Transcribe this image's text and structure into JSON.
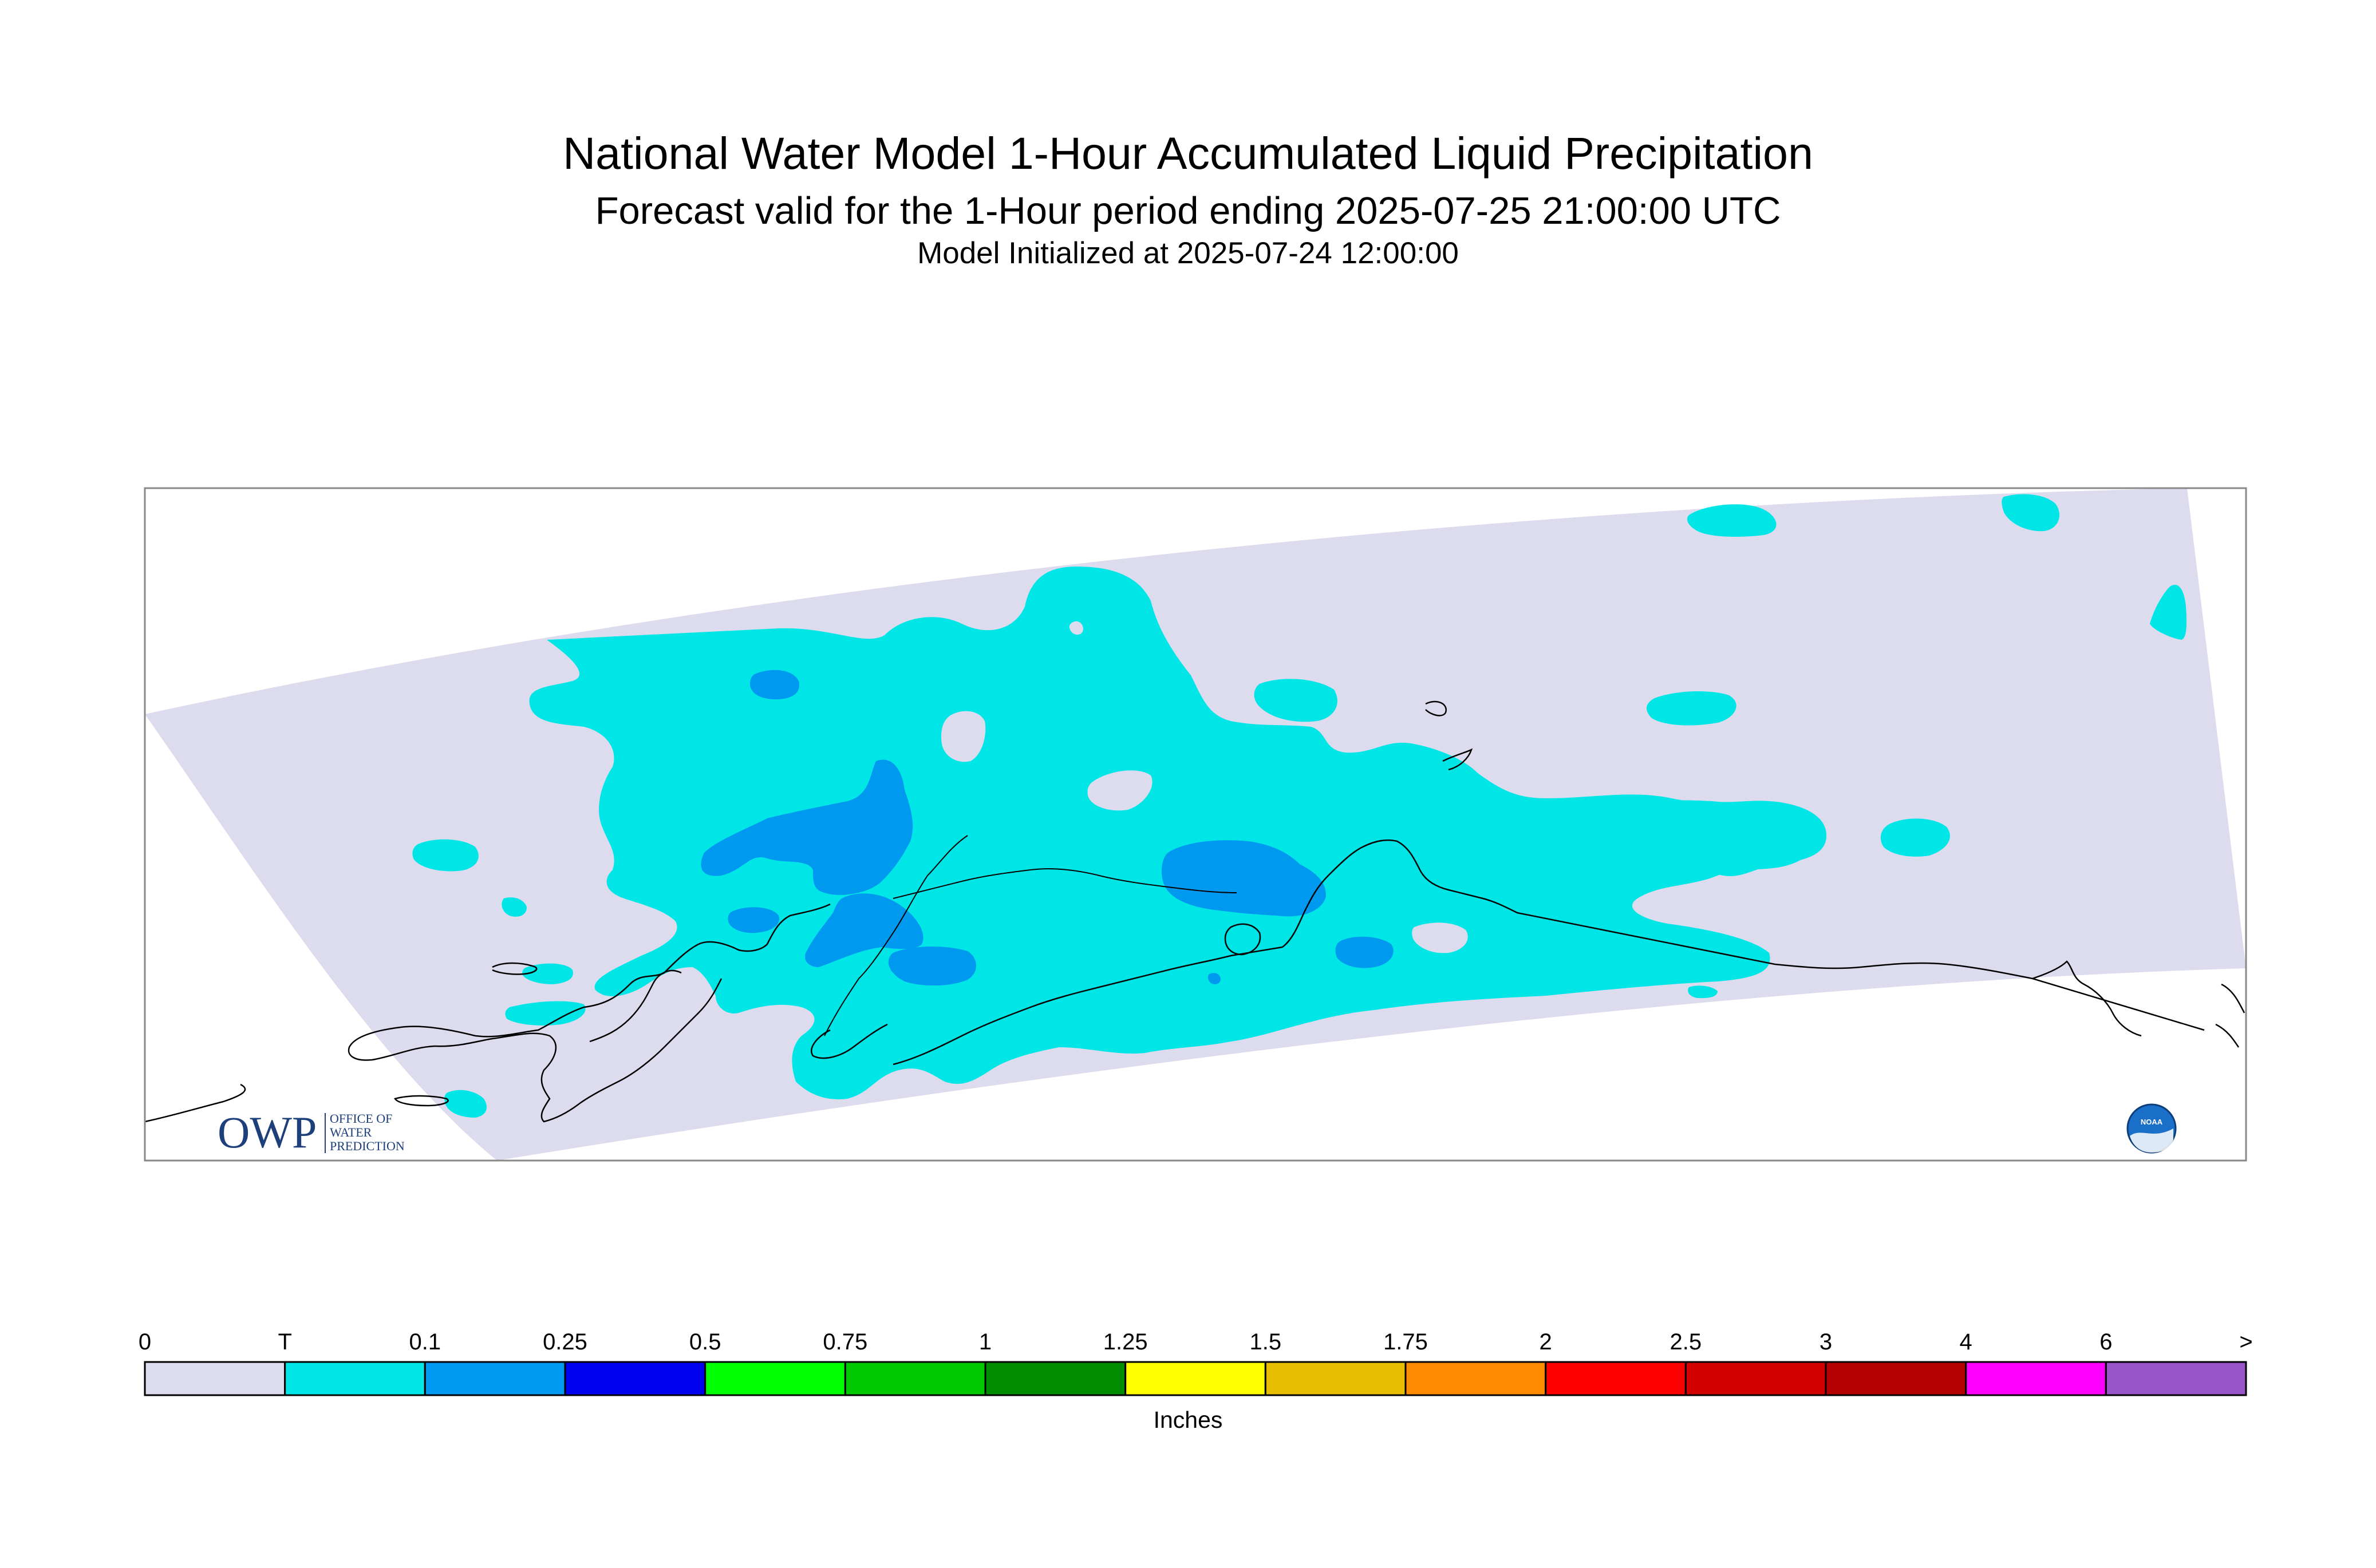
{
  "titles": {
    "main": "National Water Model 1-Hour Accumulated Liquid Precipitation",
    "sub": "Forecast valid for the 1-Hour period ending 2025-07-25 21:00:00 UTC",
    "init": "Model Initialized at 2025-07-24 12:00:00"
  },
  "map": {
    "region": "Alaska",
    "background_fill": "#dcdcee",
    "precip_colors": {
      "trace_to_0.1": "#00e6e6",
      "0.1_to_0.25": "#0099f0"
    },
    "coastline_color": "#000000"
  },
  "logos": {
    "owp_text": "OWP",
    "owp_subtext": [
      "OFFICE OF",
      "WATER",
      "PREDICTION"
    ],
    "noaa_text": "NOAA"
  },
  "legend": {
    "units": "Inches",
    "labels": [
      "0",
      "T",
      "0.1",
      "0.25",
      "0.5",
      "0.75",
      "1",
      "1.25",
      "1.5",
      "1.75",
      "2",
      "2.5",
      "3",
      "4",
      "6",
      ">"
    ],
    "colors": [
      "#dcdcee",
      "#00e6e6",
      "#0099f0",
      "#0000f0",
      "#00ff00",
      "#00c800",
      "#008c00",
      "#ffff00",
      "#e6be00",
      "#ff8c00",
      "#ff0000",
      "#d20000",
      "#b40000",
      "#ff00ff",
      "#9955c8"
    ]
  }
}
